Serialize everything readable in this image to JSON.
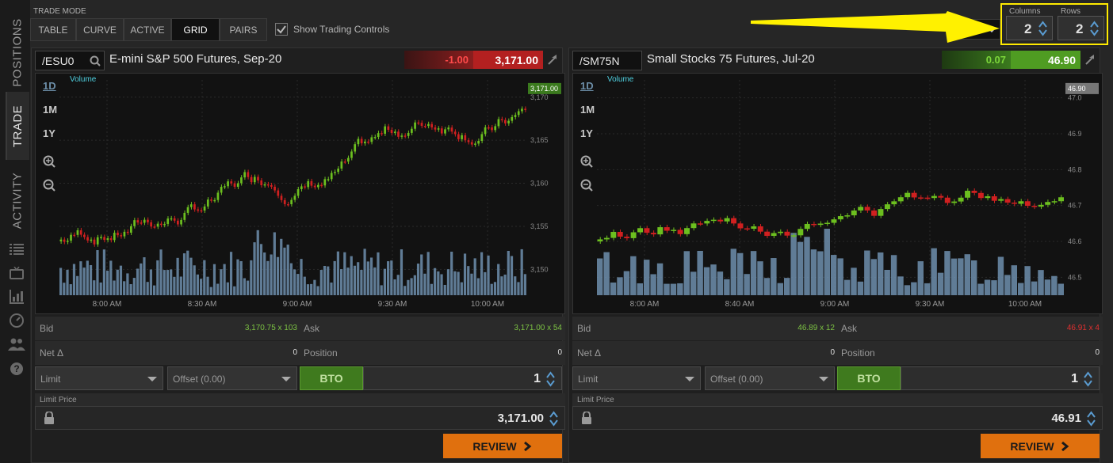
{
  "rail": {
    "tabs": [
      "POSITIONS",
      "TRADE",
      "ACTIVITY"
    ],
    "icons": [
      "list-icon",
      "tv-icon",
      "bar-chart-icon",
      "dashboard-icon",
      "people-icon",
      "help-icon"
    ]
  },
  "topbar": {
    "trade_mode_label": "TRADE MODE",
    "modes": [
      "TABLE",
      "CURVE",
      "ACTIVE",
      "GRID",
      "PAIRS"
    ],
    "selected_mode": "GRID",
    "show_controls_label": "Show Trading Controls",
    "columns_label": "Columns",
    "columns_value": "2",
    "rows_label": "Rows",
    "rows_value": "2"
  },
  "panels": [
    {
      "symbol": "/ESU0",
      "title": "E-mini S&P 500 Futures, Sep-20",
      "change": "-1.00",
      "price": "3,171.00",
      "timeframes": [
        "1D",
        "1M",
        "1Y"
      ],
      "volume_label": "Volume",
      "chart_data": {
        "type": "candlestick",
        "y_ticks": [
          "3,170",
          "3,165",
          "3,160",
          "3,155",
          "3,150"
        ],
        "y_values": [
          3170,
          3165,
          3160,
          3155,
          3150
        ],
        "x_ticks": [
          "8:00 AM",
          "8:30 AM",
          "9:00 AM",
          "9:30 AM",
          "10:00 AM"
        ],
        "last_price_label": "3,171.00",
        "ylim": [
          3147,
          3172
        ]
      },
      "bid_label": "Bid",
      "bid_value": "3,170.75 x 103",
      "ask_label": "Ask",
      "ask_value": "3,171.00 x 54",
      "net_label": "Net Δ",
      "net_value": "0",
      "position_label": "Position",
      "position_value": "0",
      "order_type": "Limit",
      "offset": "Offset (0.00)",
      "side": "BTO",
      "qty": "1",
      "limit_price_label": "Limit Price",
      "limit_price": "3,171.00",
      "review_label": "REVIEW"
    },
    {
      "symbol": "/SM75N",
      "title": "Small Stocks 75 Futures, Jul-20",
      "change": "0.07",
      "price": "46.90",
      "timeframes": [
        "1D",
        "1M",
        "1Y"
      ],
      "volume_label": "Volume",
      "chart_data": {
        "type": "candlestick",
        "y_ticks": [
          "47.0",
          "46.9",
          "46.8",
          "46.7",
          "46.6",
          "46.5"
        ],
        "y_values": [
          47.0,
          46.9,
          46.8,
          46.7,
          46.6,
          46.5
        ],
        "x_ticks": [
          "8:00 AM",
          "8:40 AM",
          "9:00 AM",
          "9:30 AM",
          "10:00 AM"
        ],
        "last_price_label": "46.90",
        "ylim": [
          46.45,
          47.05
        ]
      },
      "bid_label": "Bid",
      "bid_value": "46.89 x 12",
      "ask_label": "Ask",
      "ask_value": "46.91 x 4",
      "net_label": "Net Δ",
      "net_value": "0",
      "position_label": "Position",
      "position_value": "0",
      "order_type": "Limit",
      "offset": "Offset (0.00)",
      "side": "BTO",
      "qty": "1",
      "limit_price_label": "Limit Price",
      "limit_price": "46.91",
      "review_label": "REVIEW"
    }
  ]
}
